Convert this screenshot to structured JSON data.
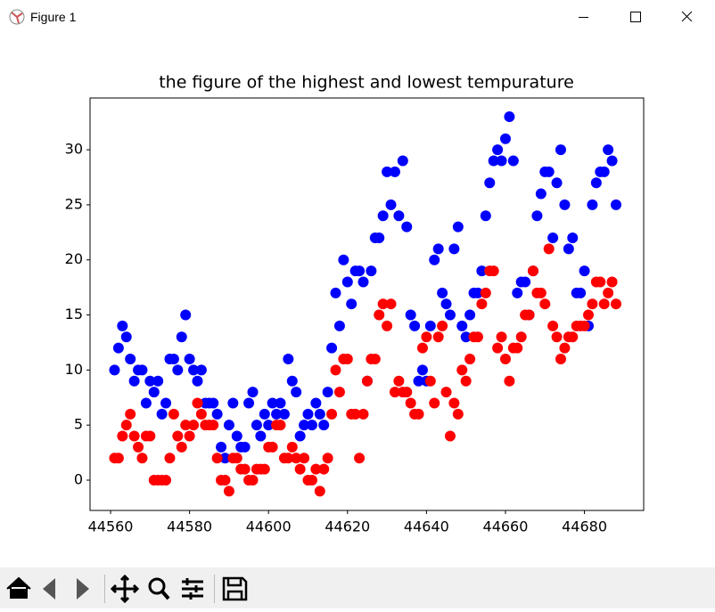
{
  "window": {
    "title": "Figure 1"
  },
  "chart_data": {
    "type": "scatter",
    "title": "the figure of the highest and lowest tempurature",
    "x": [
      44561,
      44562,
      44563,
      44564,
      44565,
      44566,
      44567,
      44568,
      44569,
      44570,
      44571,
      44572,
      44573,
      44574,
      44575,
      44576,
      44577,
      44578,
      44579,
      44580,
      44581,
      44582,
      44583,
      44584,
      44585,
      44586,
      44587,
      44588,
      44589,
      44590,
      44591,
      44592,
      44593,
      44594,
      44595,
      44596,
      44597,
      44598,
      44599,
      44600,
      44601,
      44602,
      44603,
      44604,
      44605,
      44606,
      44607,
      44608,
      44609,
      44610,
      44611,
      44612,
      44613,
      44614,
      44615,
      44616,
      44617,
      44618,
      44619,
      44620,
      44621,
      44622,
      44623,
      44624,
      44625,
      44626,
      44627,
      44628,
      44629,
      44630,
      44631,
      44632,
      44633,
      44634,
      44635,
      44636,
      44637,
      44638,
      44639,
      44640,
      44641,
      44642,
      44643,
      44644,
      44645,
      44646,
      44647,
      44648,
      44649,
      44650,
      44651,
      44652,
      44653,
      44654,
      44655,
      44656,
      44657,
      44658,
      44659,
      44660,
      44661,
      44662,
      44663,
      44664,
      44665,
      44666,
      44667,
      44668,
      44669,
      44670,
      44671,
      44672,
      44673,
      44674,
      44675,
      44676,
      44677,
      44678,
      44679,
      44680,
      44681,
      44682,
      44683,
      44684,
      44685,
      44686,
      44687,
      44688
    ],
    "series": [
      {
        "color": "#0000ff",
        "values": [
          10,
          12,
          14,
          13,
          11,
          9,
          10,
          10,
          7,
          9,
          8,
          9,
          6,
          7,
          11,
          11,
          10,
          13,
          15,
          11,
          10,
          9,
          10,
          7,
          7,
          7,
          6,
          3,
          2,
          5,
          7,
          4,
          3,
          3,
          7,
          8,
          5,
          4,
          6,
          5,
          7,
          6,
          7,
          6,
          11,
          9,
          8,
          4,
          5,
          6,
          5,
          7,
          6,
          5,
          8,
          12,
          17,
          14,
          20,
          18,
          16,
          19,
          19,
          18,
          9,
          19,
          22,
          22,
          24,
          28,
          25,
          28,
          24,
          29,
          23,
          15,
          14,
          9,
          10,
          9,
          14,
          20,
          21,
          17,
          16,
          15,
          21,
          23,
          14,
          13,
          15,
          17,
          17,
          19,
          24,
          27,
          29,
          30,
          29,
          31,
          33,
          29,
          17,
          18,
          18,
          15,
          19,
          24,
          26,
          28,
          28,
          22,
          27,
          30,
          25,
          21,
          22,
          17,
          17,
          19,
          14,
          25,
          27,
          28,
          28,
          30,
          29,
          25
        ]
      },
      {
        "color": "#ff0000",
        "values": [
          2,
          2,
          4,
          5,
          6,
          4,
          3,
          2,
          4,
          4,
          0,
          0,
          0,
          0,
          2,
          6,
          4,
          3,
          5,
          4,
          5,
          7,
          6,
          5,
          5,
          5,
          2,
          0,
          0,
          -1,
          2,
          2,
          1,
          1,
          0,
          0,
          1,
          1,
          1,
          3,
          3,
          5,
          5,
          2,
          2,
          3,
          2,
          1,
          2,
          0,
          0,
          1,
          -1,
          1,
          2,
          6,
          10,
          8,
          11,
          11,
          6,
          6,
          2,
          6,
          9,
          11,
          11,
          15,
          16,
          14,
          16,
          8,
          9,
          8,
          8,
          7,
          6,
          6,
          12,
          13,
          9,
          7,
          13,
          14,
          8,
          4,
          7,
          6,
          10,
          9,
          11,
          13,
          13,
          16,
          17,
          19,
          19,
          12,
          13,
          11,
          9,
          12,
          12,
          13,
          15,
          15,
          19,
          17,
          17,
          16,
          21,
          14,
          13,
          11,
          12,
          13,
          13,
          14,
          14,
          14,
          15,
          16,
          18,
          18,
          16,
          17,
          18,
          16
        ]
      }
    ],
    "xlim": [
      44554.8,
      44695
    ],
    "xticks": [
      44560,
      44580,
      44600,
      44620,
      44640,
      44660,
      44680
    ],
    "ylim": [
      -2.75,
      34.7
    ],
    "yticks": [
      0,
      5,
      10,
      15,
      20,
      25,
      30
    ]
  }
}
